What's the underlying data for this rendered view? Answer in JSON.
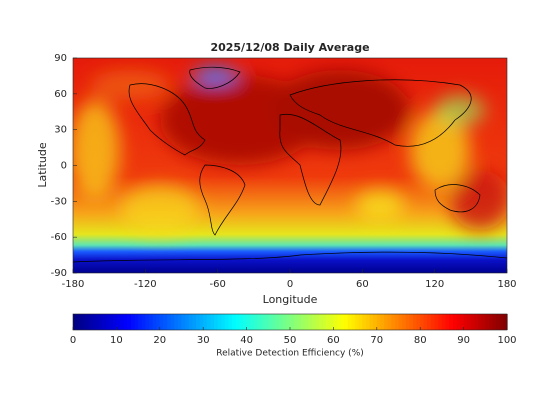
{
  "chart_data": {
    "type": "map",
    "title": "2025/12/08 Daily Average",
    "xlabel": "Longitude",
    "ylabel": "Latitude",
    "xlim": [
      -180,
      180
    ],
    "xticks": [
      -180,
      -120,
      -60,
      0,
      60,
      120,
      180
    ],
    "ylim": [
      -90,
      90
    ],
    "yticks": [
      90,
      60,
      30,
      0,
      -30,
      -60,
      -90
    ],
    "colormap": "jet",
    "colorbar": {
      "label": "Relative Detection Efficiency (%)",
      "lim": [
        0,
        100
      ],
      "ticks": [
        0,
        10,
        20,
        30,
        40,
        50,
        60,
        70,
        80,
        90,
        100
      ]
    }
  }
}
